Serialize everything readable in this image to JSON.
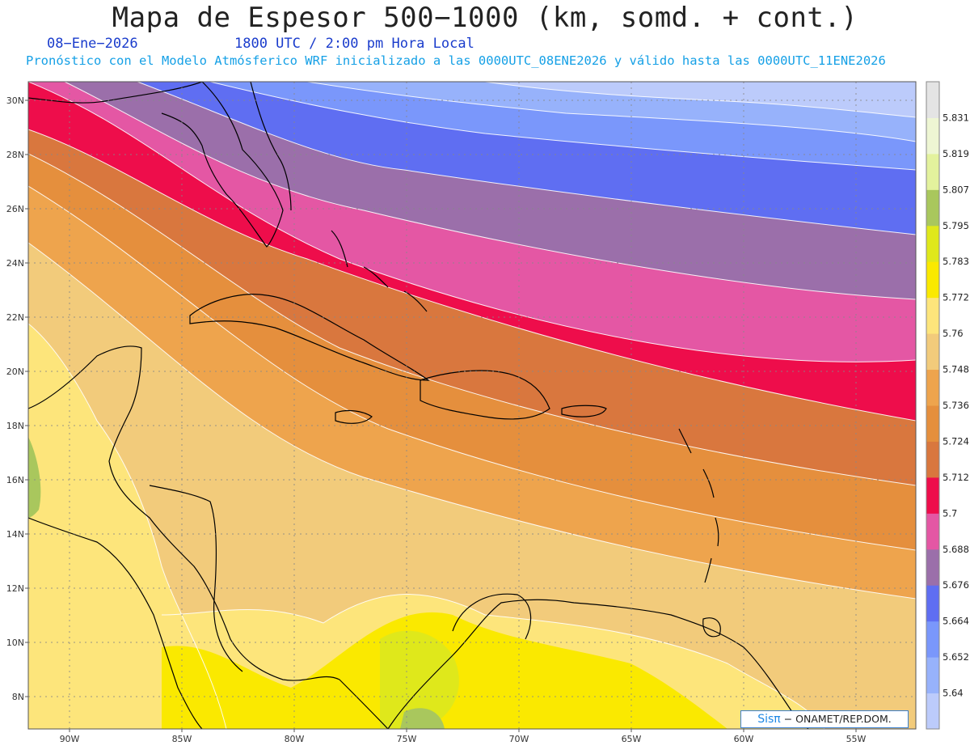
{
  "header": {
    "title": "Mapa de Espesor 500−1000 (km, somd. + cont.)",
    "date": "08−Ene−2026",
    "time": "1800 UTC / 2:00 pm Hora Local",
    "description": "Pronóstico con el Modelo Atmósferico WRF inicializado a las 0000UTC_08ENE2026 y válido hasta las  0000UTC_11ENE2026"
  },
  "map": {
    "lat_labels": [
      "30N",
      "28N",
      "26N",
      "24N",
      "22N",
      "20N",
      "18N",
      "16N",
      "14N",
      "12N",
      "10N",
      "8N"
    ],
    "lon_labels": [
      "90W",
      "85W",
      "80W",
      "75W",
      "70W",
      "65W",
      "60W",
      "55W"
    ]
  },
  "colorbar": {
    "levels": [
      "5.64",
      "5.652",
      "5.664",
      "5.676",
      "5.688",
      "5.7",
      "5.712",
      "5.724",
      "5.736",
      "5.748",
      "5.76",
      "5.772",
      "5.783",
      "5.795",
      "5.807",
      "5.819",
      "5.831"
    ],
    "colors": [
      "#bccbfb",
      "#97b2fb",
      "#7a97fb",
      "#5f6ef2",
      "#9b6faa",
      "#e457a4",
      "#ee0d4b",
      "#d9773e",
      "#e58f3d",
      "#eea44d",
      "#f2cb7b",
      "#fde57b",
      "#fae900",
      "#dfe81b",
      "#a9c75d",
      "#e3f29d",
      "#eef6d3",
      "#e4e4e4"
    ]
  },
  "credit": {
    "brand": "Sisπ",
    "text": " − ONAMET/REP.DOM."
  }
}
